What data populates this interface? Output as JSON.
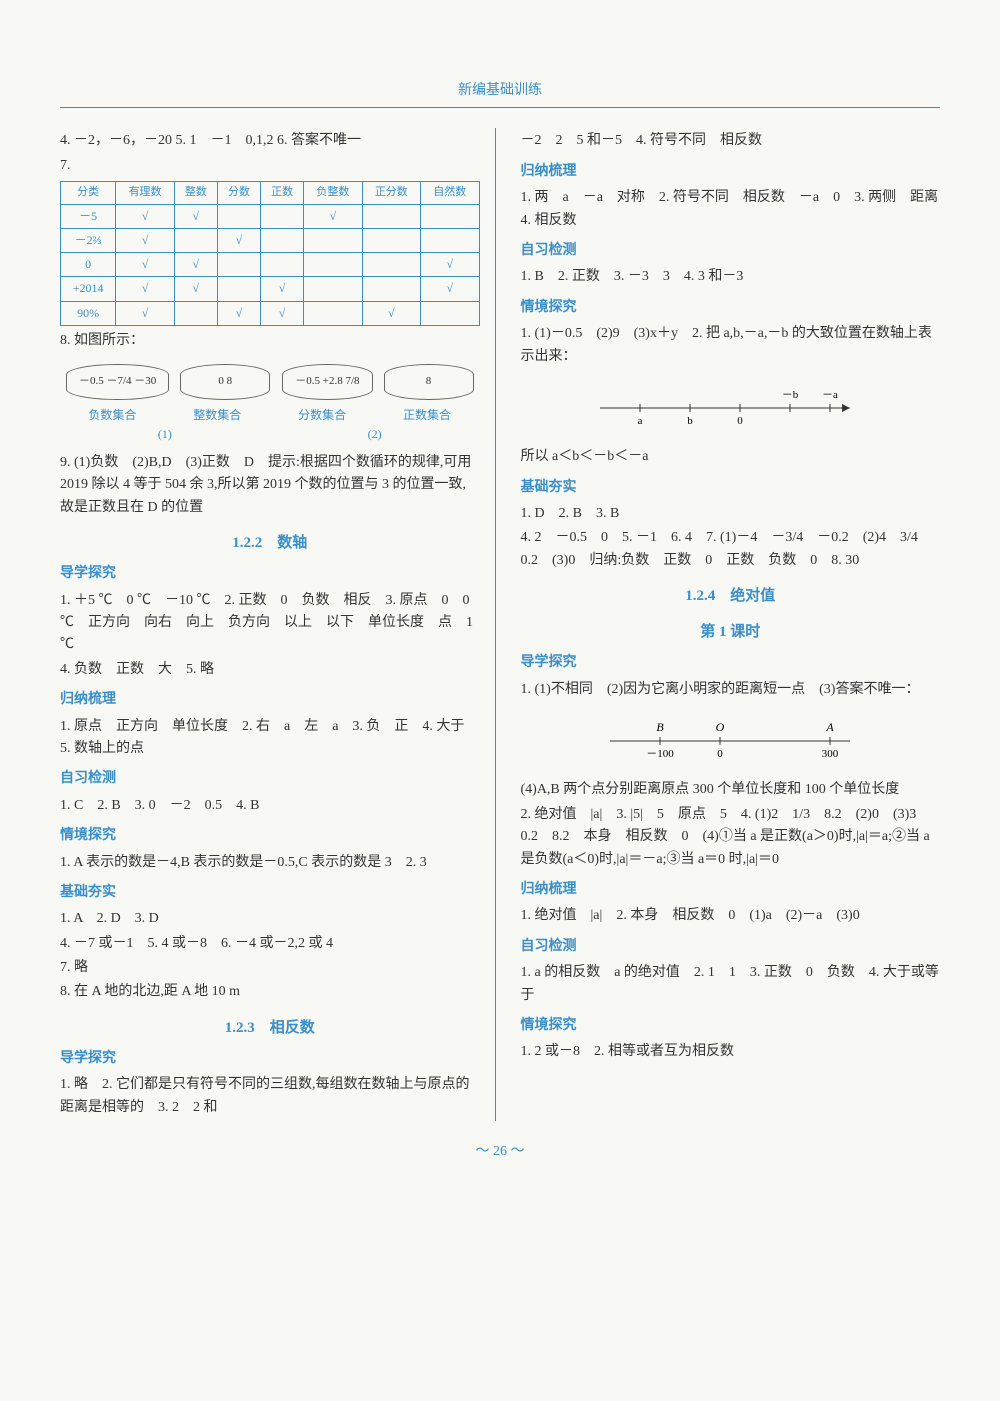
{
  "header": {
    "title": "新编基础训练"
  },
  "page_number": "～ 26 ～",
  "left_col": {
    "top_answers": {
      "q4": "4. －2，－6，－20",
      "q5": "5. 1　－1　0,1,2",
      "q6": "6. 答案不唯一",
      "q7_label": "7."
    },
    "table7": {
      "headers": [
        "分类",
        "有理数",
        "整数",
        "分数",
        "正数",
        "负整数",
        "正分数",
        "自然数"
      ],
      "rows": [
        {
          "label": "－5",
          "cells": [
            "√",
            "√",
            "",
            "",
            "√",
            "",
            ""
          ]
        },
        {
          "label": "－2⅔",
          "cells": [
            "√",
            "",
            "√",
            "",
            "",
            "",
            ""
          ]
        },
        {
          "label": "0",
          "cells": [
            "√",
            "√",
            "",
            "",
            "",
            "",
            "√"
          ]
        },
        {
          "label": "+2014",
          "cells": [
            "√",
            "√",
            "",
            "√",
            "",
            "",
            "√"
          ]
        },
        {
          "label": "90%",
          "cells": [
            "√",
            "",
            "√",
            "√",
            "",
            "√",
            ""
          ]
        }
      ]
    },
    "q8": {
      "text": "8. 如图所示：",
      "set1": "－0.5  －7/4 －30",
      "set2": "0  8",
      "set3": "－0.5  +2.8  7/8",
      "set4": "8",
      "label1": "负数集合",
      "label2": "整数集合",
      "label3": "分数集合",
      "label4": "正数集合",
      "sub1": "(1)",
      "sub2": "(2)"
    },
    "q9": "9. (1)负数　(2)B,D　(3)正数　D　提示:根据四个数循环的规律,可用 2019 除以 4 等于 504 余 3,所以第 2019 个数的位置与 3 的位置一致,故是正数且在 D 的位置",
    "sec_122": {
      "title": "1.2.2　数轴",
      "daoxue": "导学探究",
      "d1": "1. ＋5 ℃　0 ℃　－10 ℃　2. 正数　0　负数　相反　3. 原点　0　0 ℃　正方向　向右　向上　负方向　以上　以下　单位长度　点　1 ℃",
      "d4": "4. 负数　正数　大　5. 略",
      "guina": "归纳梳理",
      "g1": "1. 原点　正方向　单位长度　2. 右　a　左　a　3. 负　正　4. 大于　5. 数轴上的点",
      "zixi": "自习检测",
      "z1": "1. C　2. B　3. 0　－2　0.5　4. B",
      "qingjing": "情境探究",
      "q1": "1. A 表示的数是－4,B 表示的数是－0.5,C 表示的数是 3　2. 3",
      "jichu": "基础夯实",
      "j1": "1. A　2. D　3. D",
      "j4": "4. －7 或－1　5. 4 或－8　6. －4 或－2,2 或 4",
      "j7": "7. 略",
      "j8": "8. 在 A 地的北边,距 A 地 10 m"
    },
    "sec_123": {
      "title": "1.2.3　相反数",
      "daoxue": "导学探究",
      "d1": "1. 略　2. 它们都是只有符号不同的三组数,每组数在数轴上与原点的距离是相等的　3. 2　2 和"
    }
  },
  "right_col": {
    "top": "－2　2　5 和－5　4. 符号不同　相反数",
    "guina": "归纳梳理",
    "g1": "1. 两　a　－a　对称　2. 符号不同　相反数　－a　0　3. 两侧　距离　4. 相反数",
    "zixi": "自习检测",
    "z1": "1. B　2. 正数　3. －3　3　4. 3 和－3",
    "qingjing": "情境探究",
    "q1": "1. (1)－0.5　(2)9　(3)x＋y　2. 把 a,b,－a,－b 的大致位置在数轴上表示出来：",
    "nl_labels": [
      "a",
      "b",
      "0",
      "－b",
      "－a"
    ],
    "q_conclusion": "所以 a＜b＜－b＜－a",
    "jichu": "基础夯实",
    "j1": "1. D　2. B　3. B",
    "j4": "4. 2　－0.5　0　5. －1　6. 4　7. (1)－4　－3/4　－0.2　(2)4　3/4　0.2　(3)0　归纳:负数　正数　0　正数　负数　0　8. 30",
    "sec_124": {
      "title": "1.2.4　绝对值",
      "subtitle": "第 1 课时",
      "daoxue": "导学探究",
      "d1": "1. (1)不相同　(2)因为它离小明家的距离短一点　(3)答案不唯一：",
      "nl2_labels": [
        "B",
        "O",
        "A"
      ],
      "nl2_values": [
        "－100",
        "0",
        "300"
      ],
      "d4": "(4)A,B 两个点分别距离原点 300 个单位长度和 100 个单位长度",
      "d2": "2. 绝对值　|a|　3. |5|　5　原点　5　4. (1)2　1/3　8.2　(2)0　(3)3　0.2　8.2　本身　相反数　0　(4)①当 a 是正数(a＞0)时,|a|＝a;②当 a 是负数(a＜0)时,|a|＝－a;③当 a＝0 时,|a|＝0",
      "guina": "归纳梳理",
      "g1": "1. 绝对值　|a|　2. 本身　相反数　0　(1)a　(2)－a　(3)0",
      "zixi": "自习检测",
      "z1": "1. a 的相反数　a 的绝对值　2. 1　1　3. 正数　0　负数　4. 大于或等于",
      "qingjing": "情境探究",
      "q1": "1. 2 或－8　2. 相等或者互为相反数"
    }
  }
}
